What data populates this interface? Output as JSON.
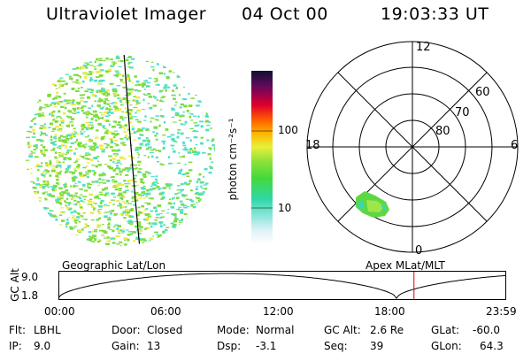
{
  "header": {
    "title": "Ultraviolet Imager",
    "date": "04 Oct 00",
    "time": "19:03:33 UT"
  },
  "colorbar": {
    "label": "photon cm⁻²s⁻¹",
    "ticks": [
      "100",
      "10"
    ]
  },
  "polar_plot": {
    "mlt_labels": {
      "top": "12",
      "left": "18",
      "right": "6",
      "bottom": "0"
    },
    "lat_labels": [
      "60",
      "70",
      "80"
    ]
  },
  "timeline": {
    "left_caption": "Geographic Lat/Lon",
    "right_caption": "Apex MLat/MLT",
    "y_axis_label": "GC Alt",
    "y_ticks": [
      "9.0",
      "1.8"
    ],
    "x_ticks": [
      "00:00",
      "06:00",
      "12:00",
      "18:00",
      "23:59"
    ],
    "current_time_fraction": 0.794
  },
  "info": {
    "flt_label": "Flt:",
    "flt_value": "LBHL",
    "ip_label": "IP:",
    "ip_value": "9.0",
    "door_label": "Door:",
    "door_value": "Closed",
    "gain_label": "Gain:",
    "gain_value": "13",
    "mode_label": "Mode:",
    "mode_value": "Normal",
    "dsp_label": "Dsp:",
    "dsp_value": "-3.1",
    "gcalt_label": "GC Alt:",
    "gcalt_value": "2.6 Re",
    "seq_label": "Seq:",
    "seq_value": "39",
    "glat_label": "GLat:",
    "glat_value": "-60.0",
    "glon_label": "GLon:",
    "glon_value": "64.3"
  },
  "colors": {
    "current_time_marker": "#e00000",
    "speckle_green": "#7ddc3c",
    "speckle_cyan": "#4fe0c8",
    "speckle_yellow": "#f2e94a"
  }
}
